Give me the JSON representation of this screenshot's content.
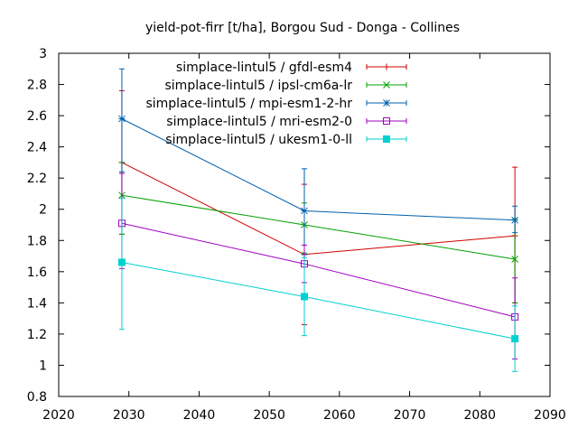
{
  "chart_data": {
    "type": "line",
    "title": "yield-pot-firr [t/ha], Borgou Sud - Donga - Collines",
    "xlabel": "",
    "ylabel": "",
    "xlim": [
      2020,
      2090
    ],
    "ylim": [
      0.8,
      3
    ],
    "xticks": [
      2020,
      2030,
      2040,
      2050,
      2060,
      2070,
      2080,
      2090
    ],
    "yticks": [
      0.8,
      1,
      1.2,
      1.4,
      1.6,
      1.8,
      2,
      2.2,
      2.4,
      2.6,
      2.8,
      3
    ],
    "xtick_labels": [
      "2020",
      "2030",
      "2040",
      "2050",
      "2060",
      "2070",
      "2080",
      "2090"
    ],
    "ytick_labels": [
      "0.8",
      "1",
      "1.2",
      "1.4",
      "1.6",
      "1.8",
      "2",
      "2.2",
      "2.4",
      "2.6",
      "2.8",
      "3"
    ],
    "grid": false,
    "legend_position": "top-right",
    "x": [
      2029,
      2055,
      2085
    ],
    "series": [
      {
        "name": "simplace-lintul5 / gfdl-esm4",
        "color": "#d00000",
        "marker": "plus",
        "values": [
          2.3,
          1.71,
          1.83
        ],
        "err_low": [
          1.84,
          1.26,
          1.4
        ],
        "err_high": [
          2.76,
          2.16,
          2.27
        ]
      },
      {
        "name": "simplace-lintul5 / ipsl-cm6a-lr",
        "color": "#00a000",
        "marker": "cross",
        "values": [
          2.09,
          1.9,
          1.68
        ],
        "err_low": [
          1.84,
          1.72,
          1.4
        ],
        "err_high": [
          2.3,
          2.04,
          1.94
        ]
      },
      {
        "name": "simplace-lintul5 / mpi-esm1-2-hr",
        "color": "#0060ad",
        "marker": "star",
        "values": [
          2.58,
          1.99,
          1.93
        ],
        "err_low": [
          2.24,
          1.71,
          1.85
        ],
        "err_high": [
          2.9,
          2.26,
          2.02
        ]
      },
      {
        "name": "simplace-lintul5 / mri-esm2-0",
        "color": "#a000c0",
        "marker": "square-open",
        "values": [
          1.91,
          1.65,
          1.31
        ],
        "err_low": [
          1.62,
          1.53,
          1.04
        ],
        "err_high": [
          2.23,
          1.77,
          1.56
        ]
      },
      {
        "name": "simplace-lintul5 / ukesm1-0-ll",
        "color": "#00d0d0",
        "marker": "square-filled",
        "values": [
          1.66,
          1.44,
          1.17
        ],
        "err_low": [
          1.23,
          1.19,
          0.96
        ],
        "err_high": [
          2.07,
          1.69,
          1.38
        ]
      }
    ]
  }
}
